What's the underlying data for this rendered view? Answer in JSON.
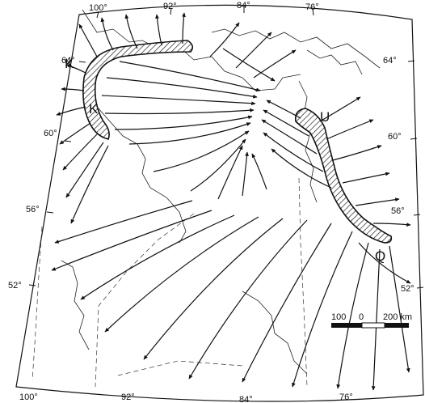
{
  "map": {
    "longitude_labels_top": [
      "100°",
      "92°",
      "84°",
      "76°"
    ],
    "longitude_labels_bottom": [
      "100°",
      "92°",
      "84°",
      "76°"
    ],
    "latitude_labels_left": [
      "64°",
      "60°",
      "56°",
      "52°"
    ],
    "latitude_labels_right": [
      "64°",
      "60°",
      "56°",
      "52°"
    ],
    "ice_divide_labels": [
      "K",
      "K",
      "U",
      "Q"
    ],
    "scale_bar": {
      "labels": [
        "100",
        "0",
        "200 km"
      ]
    }
  }
}
